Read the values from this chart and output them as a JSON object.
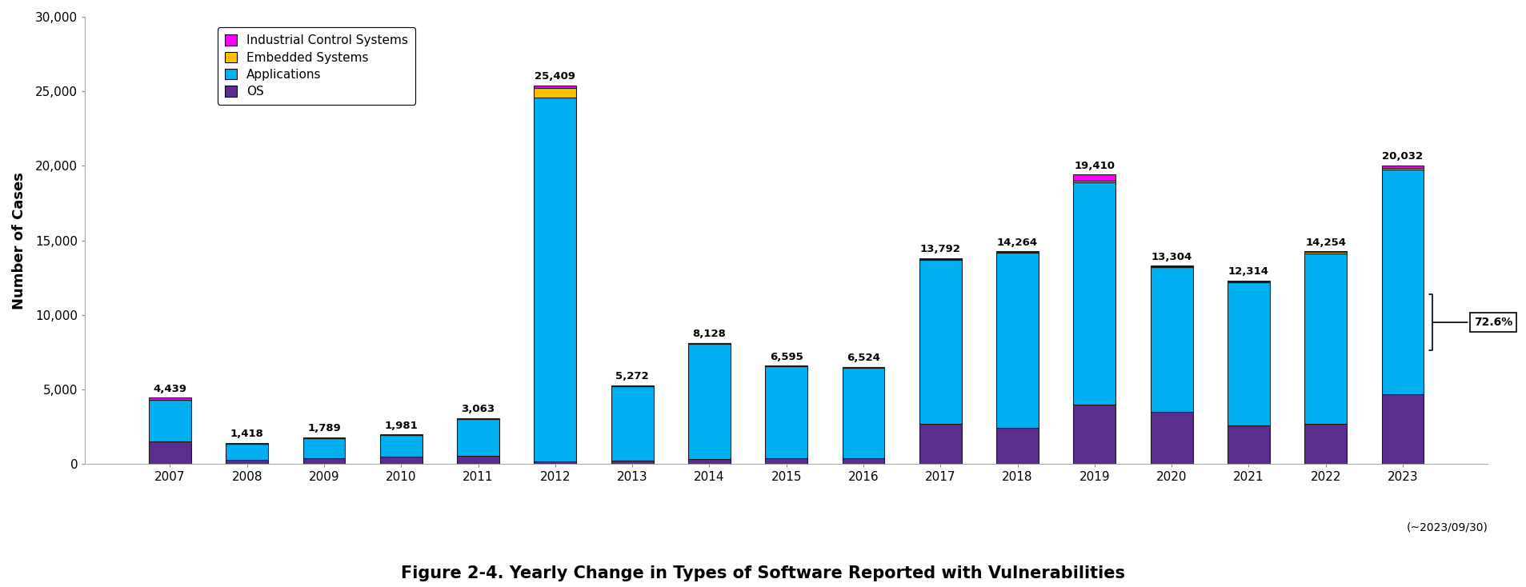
{
  "years": [
    2007,
    2008,
    2009,
    2010,
    2011,
    2012,
    2013,
    2014,
    2015,
    2016,
    2017,
    2018,
    2019,
    2020,
    2021,
    2022,
    2023
  ],
  "totals": [
    4439,
    1418,
    1789,
    1981,
    3063,
    25409,
    5272,
    8128,
    6595,
    6524,
    13792,
    14264,
    19410,
    13304,
    12314,
    14254,
    20032
  ],
  "os": [
    1500,
    250,
    380,
    500,
    550,
    150,
    200,
    350,
    400,
    400,
    2700,
    2400,
    4000,
    3500,
    2600,
    2700,
    4700
  ],
  "applications": [
    2800,
    1120,
    1360,
    1430,
    2460,
    24450,
    5020,
    7710,
    6140,
    6070,
    10980,
    11750,
    14900,
    9690,
    9600,
    11440,
    15050
  ],
  "embedded": [
    0,
    0,
    0,
    0,
    0,
    600,
    40,
    60,
    45,
    50,
    60,
    60,
    90,
    60,
    60,
    70,
    100
  ],
  "ics": [
    139,
    48,
    49,
    51,
    53,
    209,
    12,
    8,
    10,
    4,
    52,
    54,
    420,
    54,
    54,
    44,
    182
  ],
  "colors": {
    "os": "#5b2d8e",
    "applications": "#00b0f0",
    "embedded": "#ffc000",
    "ics": "#ff00ff"
  },
  "bar_edge_color": "#1a1a1a",
  "title": "Figure 2-4. Yearly Change in Types of Software Reported with Vulnerabilities",
  "ylabel": "Number of Cases",
  "ylim": [
    0,
    30000
  ],
  "yticks": [
    0,
    5000,
    10000,
    15000,
    20000,
    25000,
    30000
  ],
  "ytick_labels": [
    "0",
    "5,000",
    "10,000",
    "15,000",
    "20,000",
    "25,000",
    "30,000"
  ],
  "annotation_pct": "72.6%",
  "note": "(~2023/09/30)",
  "background_color": "#ffffff",
  "bar_width": 0.55,
  "figsize": [
    19.08,
    7.34
  ],
  "dpi": 100
}
